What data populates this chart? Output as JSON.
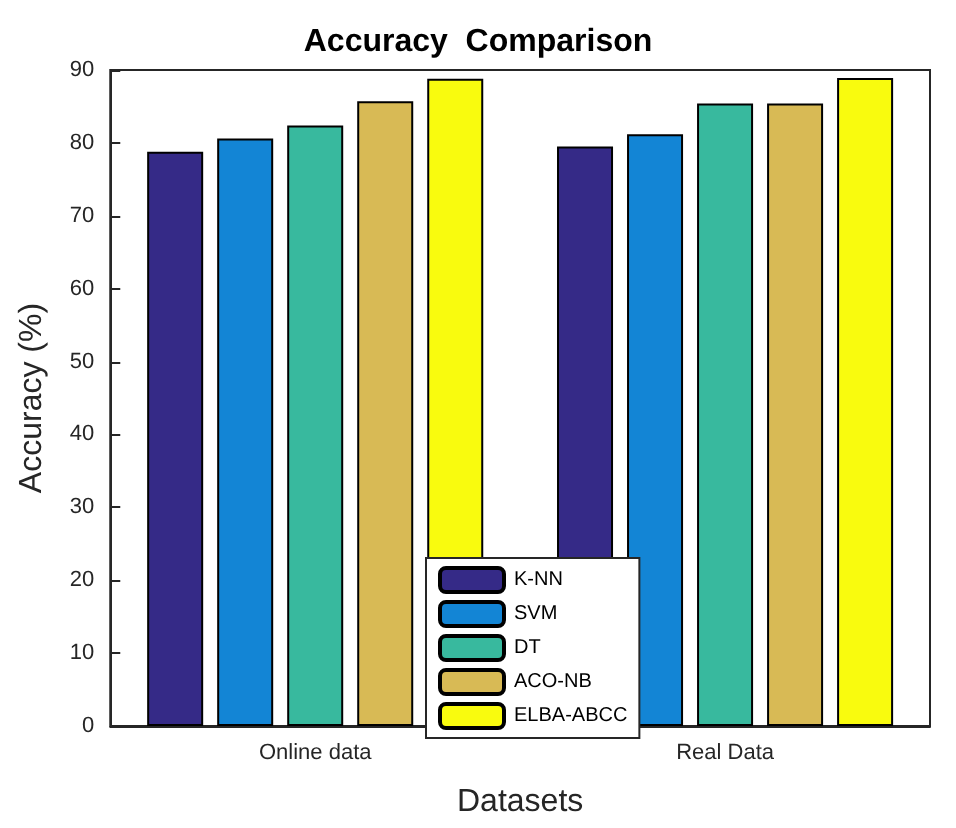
{
  "chart_data": {
    "type": "bar",
    "title": "Accuracy  Comparison",
    "xlabel": "Datasets",
    "ylabel": "Accuracy (%)",
    "categories": [
      "Online data",
      "Real Data"
    ],
    "series": [
      {
        "name": "K-NN",
        "color": "#352a87",
        "values": [
          78.8,
          79.5
        ]
      },
      {
        "name": "SVM",
        "color": "#1385d5",
        "values": [
          80.6,
          81.2
        ]
      },
      {
        "name": "DT",
        "color": "#38b99e",
        "values": [
          82.4,
          85.4
        ]
      },
      {
        "name": "ACO-NB",
        "color": "#d8ba55",
        "values": [
          85.7,
          85.4
        ]
      },
      {
        "name": "ELBA-ABCC",
        "color": "#f9fb0e",
        "values": [
          88.8,
          88.9
        ]
      }
    ],
    "ylim": [
      0,
      90
    ],
    "yticks": [
      0,
      10,
      20,
      30,
      40,
      50,
      60,
      70,
      80,
      90
    ],
    "grid": false,
    "legend": "bottom"
  }
}
